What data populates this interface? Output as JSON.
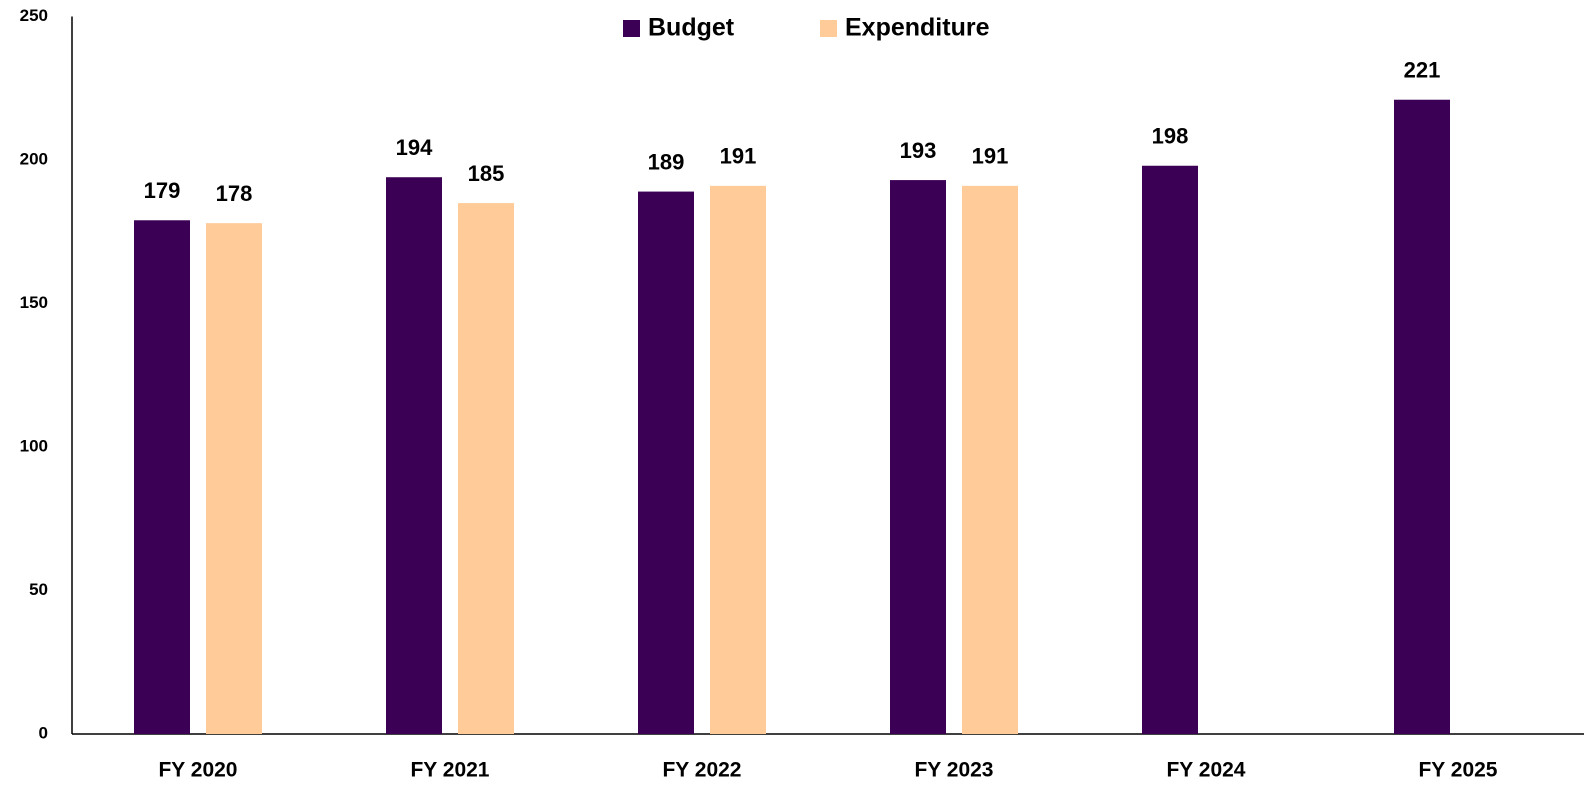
{
  "chart_data": {
    "type": "bar",
    "categories": [
      "FY 2020",
      "FY 2021",
      "FY 2022",
      "FY 2023",
      "FY 2024",
      "FY 2025"
    ],
    "series": [
      {
        "name": "Budget",
        "color": "#3b0055",
        "values": [
          179,
          194,
          189,
          193,
          198,
          221
        ]
      },
      {
        "name": "Expenditure",
        "color": "#ffcc99",
        "values": [
          178,
          185,
          191,
          191,
          null,
          null
        ]
      }
    ],
    "ylim": [
      0,
      250
    ],
    "yticks": [
      0,
      50,
      100,
      150,
      200,
      250
    ],
    "grid": false,
    "legend": "top"
  }
}
